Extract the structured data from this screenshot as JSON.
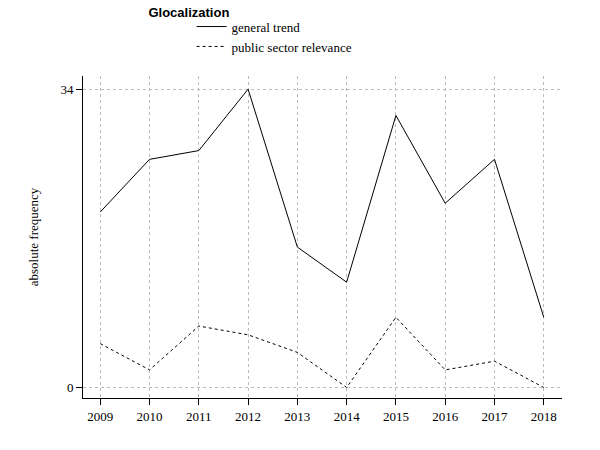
{
  "chart_data": {
    "type": "line",
    "title": "Glocalization",
    "y_label": "absolute frequency",
    "x": [
      2009,
      2010,
      2011,
      2012,
      2013,
      2014,
      2015,
      2016,
      2017,
      2018
    ],
    "series": [
      {
        "name": "general trend",
        "color": "#000000",
        "line_style": "solid",
        "values": [
          20,
          26,
          27,
          34,
          16,
          12,
          31,
          21,
          26,
          8
        ]
      },
      {
        "name": "public sector relevance",
        "color": "#000000",
        "line_style": "dotted",
        "values": [
          5,
          2,
          7,
          6,
          4,
          0,
          8,
          2,
          3,
          0
        ]
      }
    ],
    "xlim": [
      2008.65,
      2018.37
    ],
    "xticks": [
      2009,
      2010,
      2011,
      2012,
      2013,
      2014,
      2015,
      2016,
      2017,
      2018
    ],
    "ylim": [
      -1.2,
      35.5
    ],
    "yticks": [
      0,
      34
    ],
    "grid": true,
    "legend": "top"
  }
}
